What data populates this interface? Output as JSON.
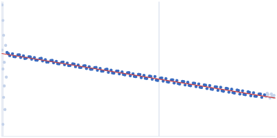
{
  "chart_data": {
    "type": "scatter",
    "xlim": [
      0,
      400
    ],
    "ylim": [
      0,
      200
    ],
    "grid": false,
    "tick_labels": false,
    "series": [
      {
        "type": "line",
        "color": "#d03a3a",
        "line_style": "solid",
        "x": [
          0,
          400
        ],
        "values": [
          123,
          57
        ]
      },
      {
        "color": "#3a6bc0",
        "marker": "circle",
        "x": [
          8,
          12,
          16,
          20,
          24,
          28,
          32,
          36,
          40,
          44,
          48,
          52,
          56,
          60,
          64,
          68,
          72,
          76,
          80,
          84,
          88,
          92,
          96,
          100,
          104,
          108,
          112,
          116,
          120,
          124,
          128,
          132,
          136,
          140,
          144,
          148,
          152,
          156,
          160,
          164,
          168,
          172,
          176,
          180,
          184,
          188,
          192,
          196,
          200,
          204,
          208,
          212,
          216,
          220,
          224,
          228,
          232,
          236,
          240,
          244,
          248,
          252,
          256,
          260,
          264,
          268,
          272,
          276,
          280,
          284,
          288,
          292,
          296,
          300,
          304,
          308,
          312,
          316,
          320,
          324,
          328,
          332,
          336,
          340,
          344,
          348,
          352,
          356,
          360,
          364,
          368,
          372,
          376,
          380,
          384
        ],
        "values": [
          124.5,
          119.8,
          122.6,
          118.2,
          121.0,
          117.1,
          119.5,
          116.0,
          118.3,
          114.6,
          116.9,
          113.0,
          115.5,
          111.9,
          113.8,
          110.2,
          112.6,
          109.1,
          111.4,
          107.7,
          110.0,
          106.3,
          108.8,
          105.1,
          107.6,
          103.4,
          106.0,
          102.2,
          104.7,
          100.8,
          103.5,
          99.6,
          102.0,
          98.1,
          100.9,
          96.8,
          99.4,
          95.2,
          98.3,
          93.9,
          97.0,
          92.8,
          95.7,
          91.2,
          94.5,
          90.1,
          93.0,
          88.6,
          92.1,
          87.2,
          90.6,
          85.9,
          89.5,
          84.8,
          88.9,
          83.0,
          86.6,
          82.1,
          85.7,
          80.6,
          84.0,
          79.3,
          82.9,
          77.8,
          81.6,
          76.4,
          80.3,
          75.2,
          79.0,
          73.9,
          77.8,
          72.5,
          76.6,
          71.0,
          75.4,
          69.9,
          73.8,
          68.4,
          72.9,
          67.1,
          71.4,
          65.8,
          70.1,
          64.3,
          68.9,
          63.0,
          67.6,
          61.9,
          66.2,
          60.4,
          64.8,
          59.5,
          63.1,
          58.0,
          61.8
        ]
      },
      {
        "color": "#3a6bc0",
        "marker": "circle",
        "x": [
          10,
          18,
          26,
          34,
          42,
          50,
          58,
          66,
          74,
          82,
          90,
          98,
          106,
          114,
          122,
          130,
          138,
          146,
          154,
          162,
          170,
          178,
          186,
          194,
          202,
          210,
          218,
          226,
          234,
          242,
          250,
          258,
          266,
          274,
          282,
          290,
          298,
          306,
          314,
          322,
          330,
          338,
          346,
          354,
          362,
          370,
          378
        ],
        "values": [
          122.8,
          118.4,
          120.9,
          115.6,
          117.9,
          113.2,
          115.8,
          110.3,
          112.9,
          107.8,
          110.4,
          105.0,
          107.3,
          102.4,
          104.8,
          99.7,
          102.3,
          97.0,
          99.8,
          94.2,
          97.1,
          91.9,
          94.6,
          89.0,
          91.8,
          86.3,
          89.1,
          83.6,
          86.7,
          81.0,
          83.9,
          78.5,
          81.3,
          75.7,
          78.9,
          73.0,
          76.0,
          70.4,
          73.5,
          67.8,
          70.9,
          65.1,
          68.2,
          62.5,
          65.4,
          59.7,
          62.9
        ]
      },
      {
        "color": "#c5d3ea",
        "marker": "circle",
        "x": [
          1,
          2,
          3,
          1,
          2,
          4,
          3,
          5,
          2,
          6,
          4,
          7,
          386,
          389,
          392,
          395,
          398,
          388,
          394,
          397
        ],
        "values": [
          195,
          172,
          150,
          128,
          100,
          75,
          58,
          40,
          18,
          135,
          110,
          88,
          59,
          62,
          57,
          60,
          61,
          64,
          63,
          58
        ]
      },
      {
        "type": "line",
        "color": "#d8dfec",
        "line_style": "solid",
        "x": [
          230,
          230
        ],
        "values": [
          0,
          200
        ]
      },
      {
        "type": "line",
        "color": "#d8dfec",
        "line_style": "solid",
        "x": [
          2,
          2
        ],
        "values": [
          0,
          200
        ]
      }
    ]
  }
}
